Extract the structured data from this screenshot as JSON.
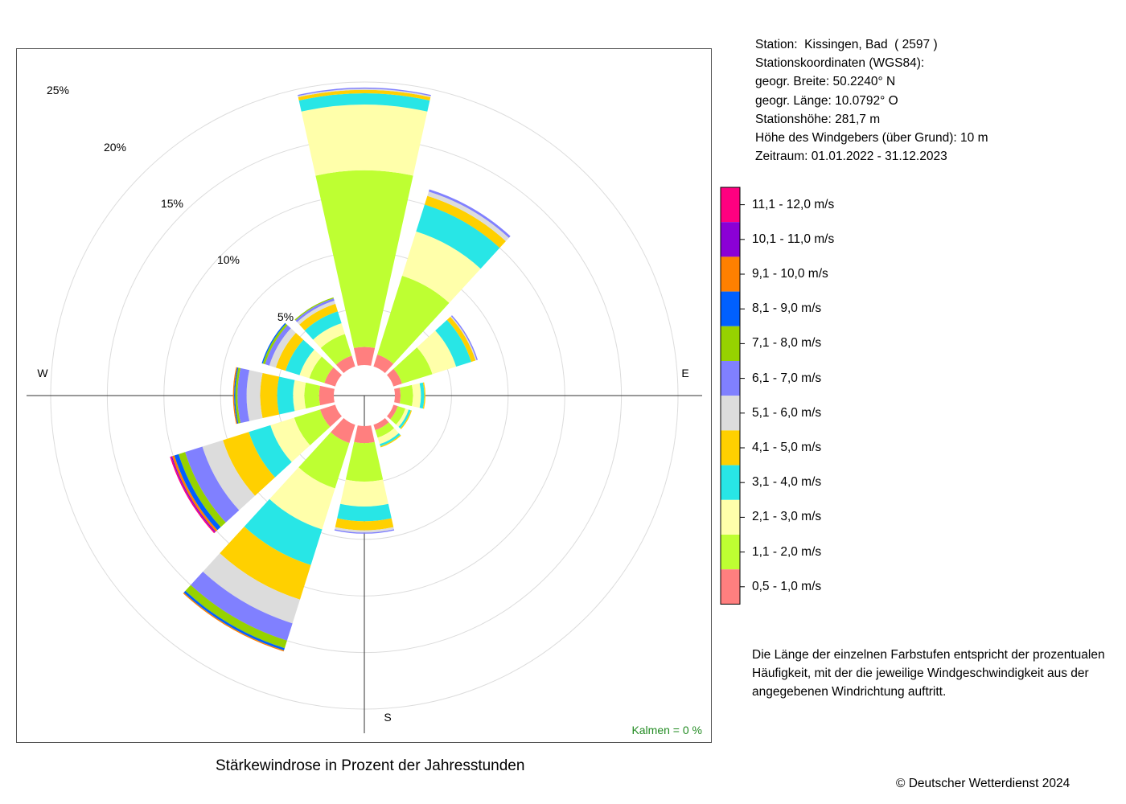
{
  "station_info": {
    "lines": [
      "Station:  Kissingen, Bad  ( 2597 )",
      "Stationskoordinaten (WGS84):",
      "geogr. Breite: 50.2240° N",
      "geogr. Länge: 10.0792° O",
      "Stationshöhe: 281,7 m",
      "Höhe des Windgebers (über Grund): 10 m",
      "Zeitraum: 01.01.2022 - 31.12.2023"
    ]
  },
  "legend": [
    {
      "label": "11,1 - 12,0 m/s",
      "color": "#FF0080"
    },
    {
      "label": "10,1 - 11,0 m/s",
      "color": "#8B00D6"
    },
    {
      "label": "9,1 - 10,0 m/s",
      "color": "#FF8000"
    },
    {
      "label": "8,1 - 9,0 m/s",
      "color": "#0060FF"
    },
    {
      "label": "7,1 - 8,0 m/s",
      "color": "#96D200"
    },
    {
      "label": "6,1 - 7,0 m/s",
      "color": "#8080FF"
    },
    {
      "label": "5,1 - 6,0 m/s",
      "color": "#DCDCDC"
    },
    {
      "label": "4,1 - 5,0 m/s",
      "color": "#FFD000"
    },
    {
      "label": "3,1 - 4,0 m/s",
      "color": "#28E6E6"
    },
    {
      "label": "2,1 - 3,0 m/s",
      "color": "#FFFFAA"
    },
    {
      "label": "1,1 - 2,0 m/s",
      "color": "#BEFF32"
    },
    {
      "label": "0,5 - 1,0 m/s",
      "color": "#FF7F7F"
    }
  ],
  "note": "Die Länge der einzelnen Farbstufen entspricht der prozentualen Häufigkeit, mit der die jeweilige Windgeschwindigkeit aus der angegebenen Windrichtung auftritt.",
  "title": "Stärkewindrose in Prozent der Jahresstunden",
  "copyright": "© Deutscher Wetterdienst  2024",
  "calm": "Kalmen  =  0 %",
  "chart_data": {
    "type": "wind_rose",
    "title": "Stärkewindrose in Prozent der Jahresstunden",
    "unit": "%",
    "ring_labels": [
      "5%",
      "10%",
      "15%",
      "20%",
      "25%"
    ],
    "rings": [
      5,
      10,
      15,
      20,
      25
    ],
    "compass_labels": {
      "W": "W",
      "E": "E",
      "S": "S"
    },
    "directions_deg": [
      0,
      30,
      60,
      90,
      120,
      150,
      180,
      210,
      240,
      270,
      300,
      330
    ],
    "speed_classes": [
      "0,5 - 1,0 m/s",
      "1,1 - 2,0 m/s",
      "2,1 - 3,0 m/s",
      "3,1 - 4,0 m/s",
      "4,1 - 5,0 m/s",
      "5,1 - 6,0 m/s",
      "6,1 - 7,0 m/s",
      "7,1 - 8,0 m/s",
      "8,1 - 9,0 m/s",
      "9,1 - 10,0 m/s",
      "10,1 - 11,0 m/s",
      "11,1 - 12,0 m/s"
    ],
    "frequencies": [
      [
        1.6,
        15.6,
        5.8,
        1.0,
        0.3,
        0.1,
        0.1,
        0,
        0,
        0,
        0,
        0
      ],
      [
        1.1,
        7.3,
        4.1,
        2.5,
        0.8,
        0.4,
        0.2,
        0,
        0,
        0,
        0,
        0
      ],
      [
        0.8,
        2.8,
        2.2,
        1.4,
        0.4,
        0.1,
        0.1,
        0,
        0,
        0,
        0,
        0
      ],
      [
        0.5,
        1.1,
        0.7,
        0.3,
        0.1,
        0,
        0,
        0,
        0,
        0,
        0,
        0
      ],
      [
        0.4,
        0.7,
        0.3,
        0.2,
        0.1,
        0,
        0,
        0,
        0,
        0,
        0,
        0
      ],
      [
        0.5,
        0.7,
        0.6,
        0.2,
        0.1,
        0,
        0,
        0,
        0,
        0,
        0,
        0
      ],
      [
        1.5,
        3.4,
        2.2,
        1.3,
        0.8,
        0.2,
        0.1,
        0,
        0,
        0,
        0,
        0
      ],
      [
        1.7,
        4.2,
        3.8,
        3.3,
        3.2,
        2.2,
        1.6,
        0.7,
        0.2,
        0.1,
        0,
        0
      ],
      [
        1.4,
        2.4,
        2.2,
        2.0,
        2.4,
        1.9,
        1.6,
        0.6,
        0.4,
        0.2,
        0.1,
        0.1
      ],
      [
        1.3,
        1.3,
        1.0,
        1.4,
        1.5,
        1.2,
        0.8,
        0.2,
        0.1,
        0.1,
        0,
        0
      ],
      [
        1.0,
        1.4,
        0.9,
        1.3,
        0.9,
        0.6,
        0.4,
        0.2,
        0.1,
        0,
        0,
        0
      ],
      [
        1.0,
        2.0,
        1.0,
        1.1,
        0.7,
        0.3,
        0.2,
        0.1,
        0,
        0,
        0,
        0
      ]
    ],
    "calm_percent": 0
  }
}
